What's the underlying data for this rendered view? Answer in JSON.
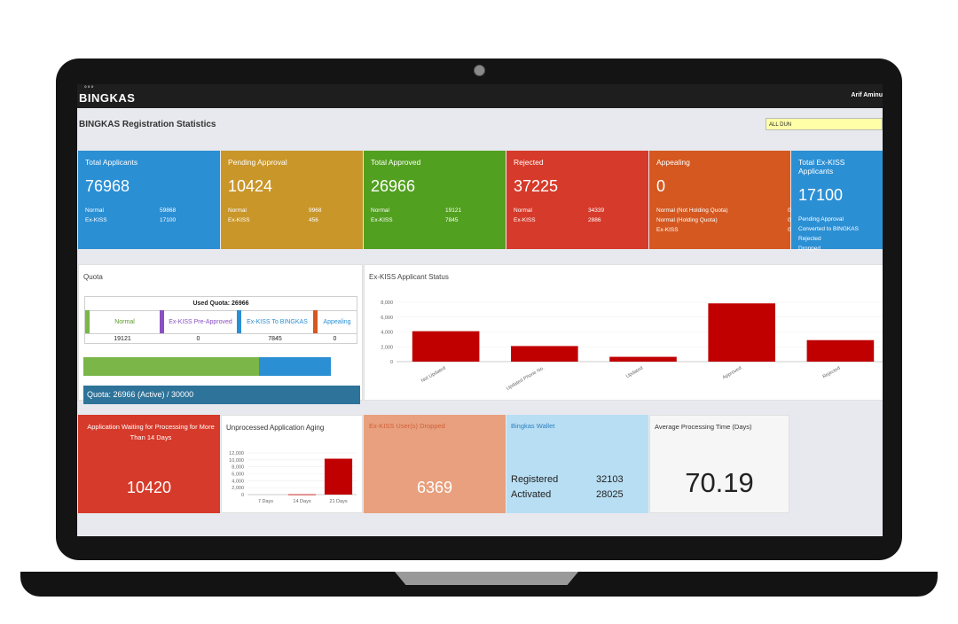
{
  "app": {
    "logo": "BINGKAS",
    "user": "Arif Aminu"
  },
  "page_title": "BINGKAS Registration Statistics",
  "filter": {
    "selected": "ALL DUN"
  },
  "cards": [
    {
      "title": "Total Applicants",
      "value": "76968",
      "color": "#2b8fd4",
      "rows": [
        {
          "label": "Normal",
          "value": "59868"
        },
        {
          "label": "Ex-KISS",
          "value": "17100"
        }
      ]
    },
    {
      "title": "Pending Approval",
      "value": "10424",
      "color": "#c9962a",
      "rows": [
        {
          "label": "Normal",
          "value": "9968"
        },
        {
          "label": "Ex-KISS",
          "value": "456"
        }
      ]
    },
    {
      "title": "Total Approved",
      "value": "26966",
      "color": "#52a020",
      "rows": [
        {
          "label": "Normal",
          "value": "19121"
        },
        {
          "label": "Ex-KISS",
          "value": "7845"
        }
      ]
    },
    {
      "title": "Rejected",
      "value": "37225",
      "color": "#d63a2a",
      "rows": [
        {
          "label": "Normal",
          "value": "34339"
        },
        {
          "label": "Ex-KISS",
          "value": "2886"
        }
      ]
    },
    {
      "title": "Appealing",
      "value": "0",
      "color": "#d45820",
      "rows": [
        {
          "label": "Normal (Not Holding Quota)",
          "value": "0"
        },
        {
          "label": "Normal (Holding Quota)",
          "value": "0"
        },
        {
          "label": "Ex-KISS",
          "value": "0"
        }
      ]
    },
    {
      "title": "Total Ex-KISS Applicants",
      "value": "17100",
      "color": "#2b8fd4",
      "rows": [
        {
          "label": "Pending Approval",
          "value": ""
        },
        {
          "label": "Converted to BINGKAS",
          "value": ""
        },
        {
          "label": "Rejected",
          "value": ""
        },
        {
          "label": "Dropped",
          "value": ""
        }
      ]
    }
  ],
  "quota": {
    "title": "Quota",
    "used_label": "Used Quota: 26966",
    "columns": [
      {
        "label": "Normal",
        "value": "19121",
        "color": "#7ab648",
        "text_color": "#5a9a2a"
      },
      {
        "label": "Ex-KISS Pre-Approved",
        "value": "0",
        "color": "#8a4fc2",
        "text_color": "#8a4fc2"
      },
      {
        "label": "Ex-KISS To BINGKAS",
        "value": "7845",
        "color": "#2b8fd4",
        "text_color": "#2b8fd4"
      },
      {
        "label": "Appealing",
        "value": "0",
        "color": "#d45820",
        "text_color": "#2b8fd4"
      }
    ],
    "bar": {
      "normal_fraction": 0.6374,
      "exkiss_fraction": 0.2615
    },
    "footer": "Quota: 26966 (Active) / 30000"
  },
  "exkiss_status": {
    "title": "Ex-KISS Applicant Status",
    "chart_data": {
      "type": "bar",
      "categories": [
        "Not Updated",
        "Updated Phone No.",
        "Updated",
        "Approved",
        "Rejected"
      ],
      "values": [
        4100,
        2100,
        650,
        7850,
        2900
      ],
      "ylim": [
        0,
        8000
      ],
      "yticks": [
        "0",
        "2,000",
        "4,000",
        "6,000",
        "8,000"
      ],
      "color": "#c00000",
      "grid": true
    }
  },
  "waiting": {
    "title": "Application Waiting for Processing for More Than 14 Days",
    "value": "10420",
    "color": "#d63a2a"
  },
  "aging": {
    "title": "Unprocessed Application Aging",
    "chart_data": {
      "type": "bar",
      "categories": [
        "7 Days",
        "14 Days",
        "21 Days"
      ],
      "values": [
        0,
        80,
        10340
      ],
      "ylim": [
        0,
        12000
      ],
      "yticks": [
        "0",
        "2,000",
        "4,000",
        "6,000",
        "8,000",
        "10,000",
        "12,000"
      ],
      "color": "#c00000",
      "grid": true
    }
  },
  "dropped": {
    "title": "Ex-KISS User(s) Dropped",
    "value": "6369",
    "color": "#e8a07e"
  },
  "wallet": {
    "title": "Bingkas Wallet",
    "registered_label": "Registered",
    "registered": "32103",
    "activated_label": "Activated",
    "activated": "28025",
    "color": "#b8def3"
  },
  "avg_time": {
    "title": "Average Processing Time (Days)",
    "value": "70.19"
  }
}
